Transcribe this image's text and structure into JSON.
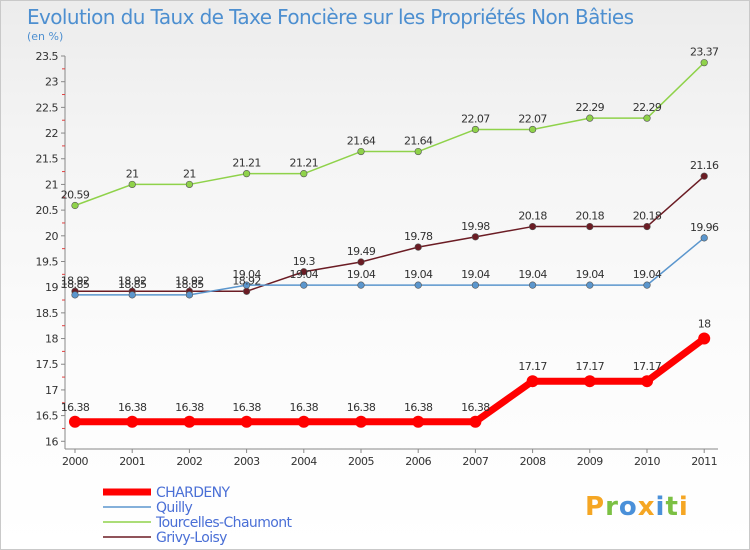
{
  "chart_data": {
    "type": "line",
    "title": "Evolution du Taux de Taxe Foncière sur les Propriétés Non Bâties",
    "unit_label": "(en %)",
    "categories": [
      "2000",
      "2001",
      "2002",
      "2003",
      "2004",
      "2005",
      "2006",
      "2007",
      "2008",
      "2009",
      "2010",
      "2011"
    ],
    "ylim": [
      15.85,
      23.5
    ],
    "y_ticks": [
      "16",
      "16.5",
      "17",
      "17.5",
      "18",
      "18.5",
      "19",
      "19.5",
      "20",
      "20.5",
      "21",
      "21.5",
      "22",
      "22.5",
      "23",
      "23.5"
    ],
    "grid": false,
    "legend_position": "bottom-left",
    "series": [
      {
        "name": "Tourcelles-Chaumont",
        "color": "#8fd24a",
        "values": [
          20.59,
          21,
          21,
          21.21,
          21.21,
          21.64,
          21.64,
          22.07,
          22.07,
          22.29,
          22.29,
          23.37
        ],
        "labels": [
          "20.59",
          "21",
          "21",
          "21.21",
          "21.21",
          "21.64",
          "21.64",
          "22.07",
          "22.07",
          "22.29",
          "22.29",
          "23.37"
        ]
      },
      {
        "name": "Grivy-Loisy",
        "color": "#6b1c24",
        "values": [
          18.92,
          18.92,
          18.92,
          18.92,
          19.3,
          19.49,
          19.78,
          19.98,
          20.18,
          20.18,
          20.18,
          21.16
        ],
        "labels": [
          "18.92",
          "18.92",
          "18.92",
          "18.92",
          "19.3",
          "19.49",
          "19.78",
          "19.98",
          "20.18",
          "20.18",
          "20.18",
          "21.16"
        ]
      },
      {
        "name": "Quilly",
        "color": "#5b96cd",
        "values": [
          18.85,
          18.85,
          18.85,
          19.04,
          19.04,
          19.04,
          19.04,
          19.04,
          19.04,
          19.04,
          19.04,
          19.96
        ],
        "labels": [
          "18.85",
          "18.85",
          "18.85",
          "19.04",
          "19.04",
          "19.04",
          "19.04",
          "19.04",
          "19.04",
          "19.04",
          "19.04",
          "19.96"
        ]
      },
      {
        "name": "CHARDENY",
        "color": "#ff0000",
        "values": [
          16.38,
          16.38,
          16.38,
          16.38,
          16.38,
          16.38,
          16.38,
          16.38,
          17.17,
          17.17,
          17.17,
          18
        ],
        "labels": [
          "16.38",
          "16.38",
          "16.38",
          "16.38",
          "16.38",
          "16.38",
          "16.38",
          "16.38",
          "17.17",
          "17.17",
          "17.17",
          "18"
        ]
      }
    ],
    "legend": [
      "CHARDENY",
      "Quilly",
      "Tourcelles-Chaumont",
      "Grivy-Loisy"
    ]
  },
  "branding": {
    "logo_text": "Proxiti"
  }
}
